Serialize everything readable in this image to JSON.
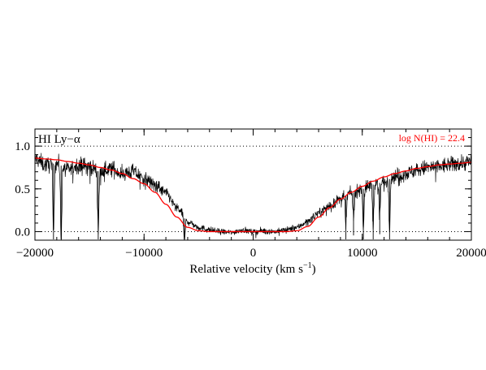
{
  "chart_data": {
    "type": "line",
    "panel_label": "HI Ly−α",
    "annotation": "log N(HI) = 22.4",
    "xlabel_main": "Relative velocity (km s",
    "xlabel_sup": "−1",
    "xlabel_end": ")",
    "xlim": [
      -20000,
      20000
    ],
    "ylim": [
      -0.1,
      1.2
    ],
    "xticks": [
      {
        "value": -20000,
        "label": "−20000"
      },
      {
        "value": -10000,
        "label": "−10000"
      },
      {
        "value": 0,
        "label": "0"
      },
      {
        "value": 10000,
        "label": "10000"
      },
      {
        "value": 20000,
        "label": "20000"
      }
    ],
    "yticks": [
      {
        "value": 0.0,
        "label": "0.0"
      },
      {
        "value": 0.5,
        "label": "0.5"
      },
      {
        "value": 1.0,
        "label": "1.0"
      }
    ],
    "reference_lines": [
      0.0,
      1.0
    ],
    "series": [
      {
        "color": "#000000",
        "x": [
          -20000,
          -19000,
          -18000,
          -17000,
          -16000,
          -15000,
          -14000,
          -13000,
          -12000,
          -11000,
          -10000,
          -9000,
          -8000,
          -7000,
          -6000,
          -5000,
          -4000,
          -3000,
          -2000,
          -1000,
          0,
          1000,
          2000,
          3000,
          4000,
          5000,
          6000,
          7000,
          8000,
          9000,
          10000,
          11000,
          12000,
          13000,
          14000,
          15000,
          16000,
          17000,
          18000,
          19000,
          20000
        ],
        "y": [
          0.85,
          0.78,
          0.8,
          0.72,
          0.78,
          0.76,
          0.7,
          0.74,
          0.68,
          0.7,
          0.62,
          0.55,
          0.45,
          0.28,
          0.12,
          0.05,
          0.02,
          0.0,
          -0.01,
          0.02,
          0.0,
          0.01,
          0.0,
          0.02,
          0.05,
          0.12,
          0.22,
          0.3,
          0.38,
          0.45,
          0.5,
          0.55,
          0.58,
          0.65,
          0.68,
          0.72,
          0.75,
          0.76,
          0.78,
          0.8,
          0.82
        ]
      },
      {
        "color": "#ff0000",
        "x": [
          -20000,
          -19000,
          -18000,
          -17000,
          -16000,
          -15000,
          -14000,
          -13000,
          -12000,
          -11000,
          -10000,
          -9000,
          -8000,
          -7000,
          -6000,
          -5000,
          -4000,
          -3000,
          -2000,
          -1000,
          0,
          1000,
          2000,
          3000,
          4000,
          5000,
          6000,
          7000,
          8000,
          9000,
          10000,
          11000,
          12000,
          13000,
          14000,
          15000,
          16000,
          17000,
          18000,
          19000,
          20000
        ],
        "y": [
          0.86,
          0.85,
          0.84,
          0.82,
          0.8,
          0.78,
          0.75,
          0.72,
          0.68,
          0.62,
          0.56,
          0.46,
          0.32,
          0.17,
          0.05,
          0.01,
          0.0,
          0.0,
          0.0,
          0.0,
          0.0,
          0.0,
          0.0,
          0.0,
          0.01,
          0.06,
          0.17,
          0.28,
          0.38,
          0.46,
          0.53,
          0.59,
          0.64,
          0.68,
          0.71,
          0.74,
          0.76,
          0.78,
          0.79,
          0.8,
          0.81
        ]
      }
    ],
    "absorption_lines": [
      {
        "x": -18300,
        "depth": 0.85
      },
      {
        "x": -17600,
        "depth": 0.9
      },
      {
        "x": -14200,
        "depth": 0.7
      },
      {
        "x": -6300,
        "depth": 0.3
      },
      {
        "x": 8500,
        "depth": 0.35
      },
      {
        "x": 9200,
        "depth": 0.3
      },
      {
        "x": 10100,
        "depth": 0.45
      },
      {
        "x": 11000,
        "depth": 0.5
      },
      {
        "x": 11600,
        "depth": 0.4
      },
      {
        "x": 12500,
        "depth": 0.55
      }
    ]
  }
}
